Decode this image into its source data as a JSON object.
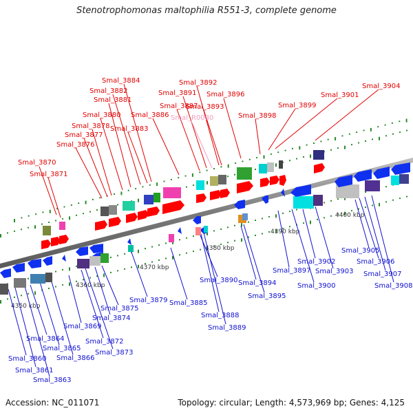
{
  "title": "Stenotrophomonas maltophilia R551-3, complete genome",
  "footer": {
    "accession": "Accession: NC_011071",
    "summary": "Topology: circular; Length: 4,573,969 bp; Genes: 4,125"
  },
  "colors": {
    "top_strand_label": "#e00000",
    "bottom_strand_label": "#1010d0",
    "rna_label": "#f0a0c0",
    "backbone": "#808080"
  },
  "ticks": [
    {
      "label": "4350 kbp"
    },
    {
      "label": "4360 kbp"
    },
    {
      "label": "4370 kbp"
    },
    {
      "label": "4380 kbp"
    },
    {
      "label": "4390 kbp"
    },
    {
      "label": "4400 kbp"
    }
  ],
  "top_labels": [
    "Smal_3870",
    "Smal_3871",
    "Smal_3876",
    "Smal_3877",
    "Smal_3878",
    "Smal_3880",
    "Smal_3881",
    "Smal_3882",
    "Smal_3883",
    "Smal_3884",
    "Smal_3886",
    "Smal_3887",
    "Smal_3891",
    "Smal_R0080",
    "Smal_3892",
    "Smal_3893",
    "Smal_3896",
    "Smal_3898",
    "Smal_3899",
    "Smal_3901",
    "Smal_3904"
  ],
  "bottom_labels": [
    "Smal_3860",
    "Smal_3861",
    "Smal_3863",
    "Smal_3864",
    "Smal_3865",
    "Smal_3866",
    "Smal_3869",
    "Smal_3872",
    "Smal_3873",
    "Smal_3874",
    "Smal_3875",
    "Smal_3879",
    "Smal_3885",
    "Smal_3888",
    "Smal_3889",
    "Smal_3890",
    "Smal_3894",
    "Smal_3895",
    "Smal_3897",
    "Smal_3900",
    "Smal_3902",
    "Smal_3903",
    "Smal_3905",
    "Smal_3906",
    "Smal_3907",
    "Smal_3908"
  ]
}
